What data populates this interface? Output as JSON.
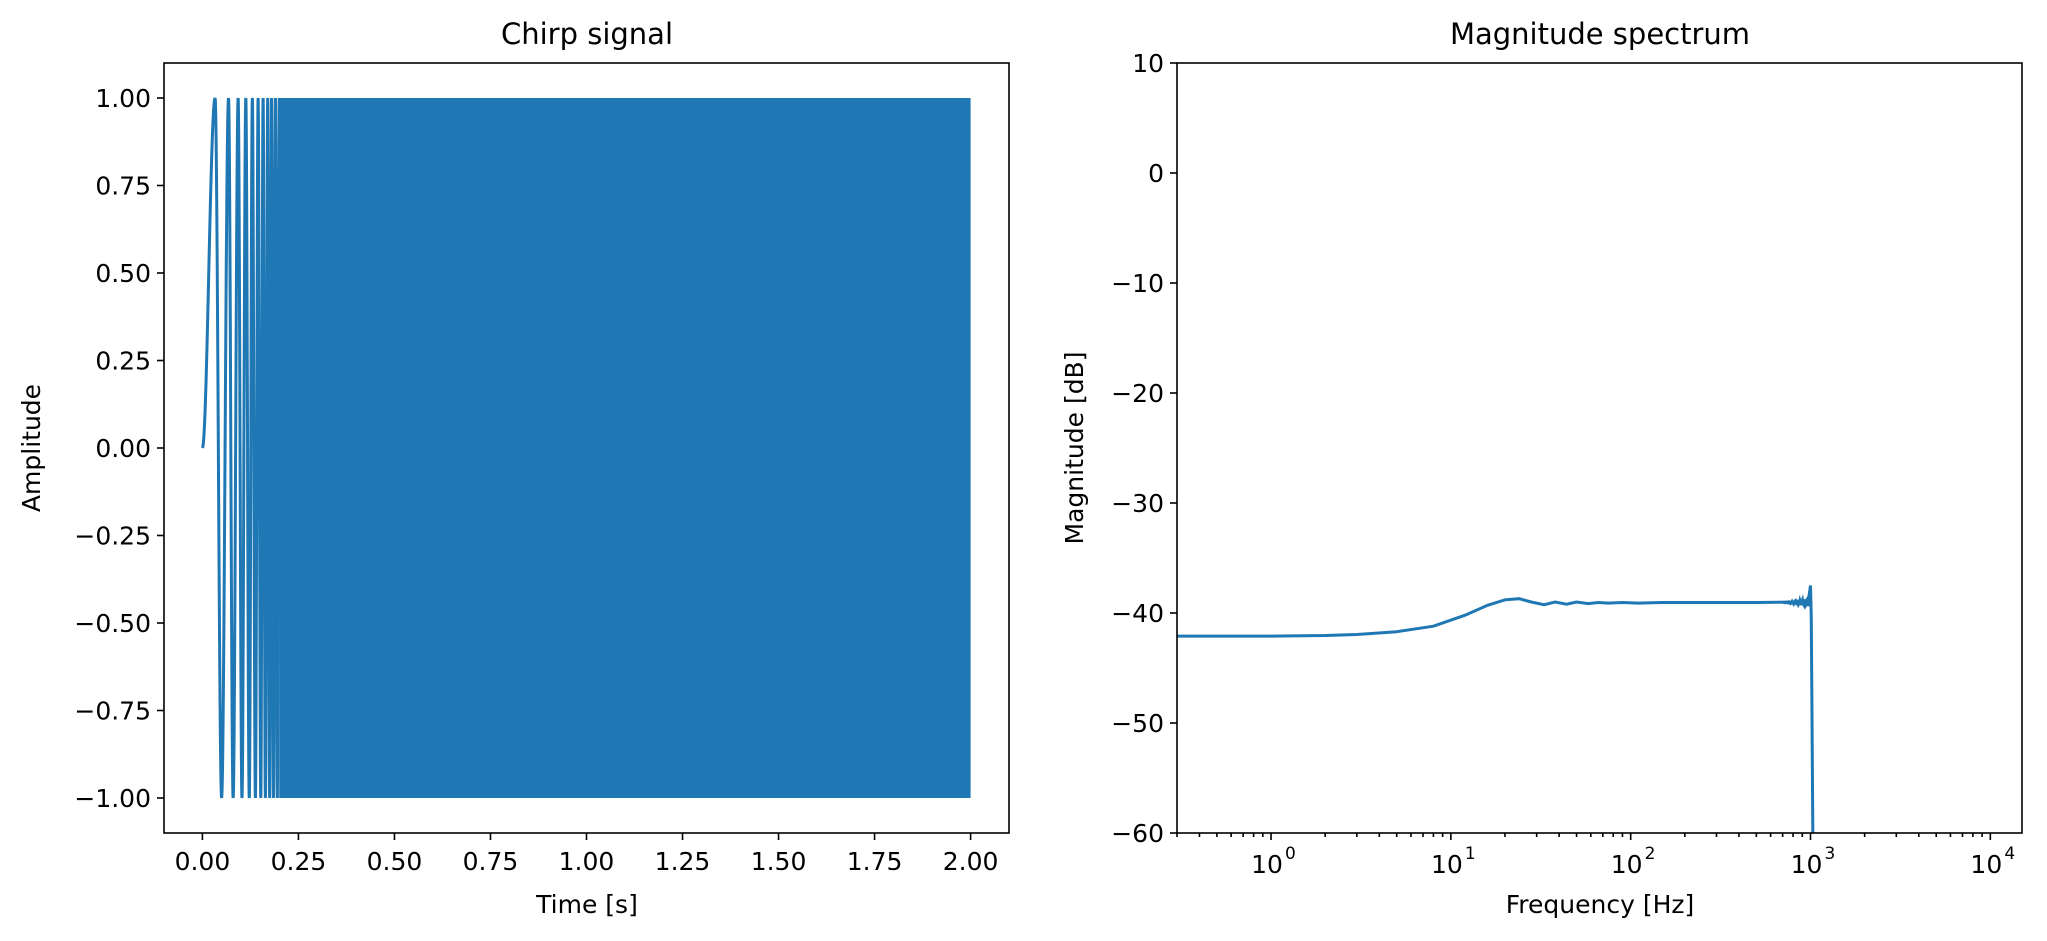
{
  "chart_data": [
    {
      "type": "line",
      "title": "Chirp signal",
      "xlabel": "Time [s]",
      "ylabel": "Amplitude",
      "xlim": [
        -0.1,
        2.1
      ],
      "ylim": [
        -1.1,
        1.1
      ],
      "xticks": [
        0.0,
        0.25,
        0.5,
        0.75,
        1.0,
        1.25,
        1.5,
        1.75,
        2.0
      ],
      "xtick_labels": [
        "0.00",
        "0.25",
        "0.50",
        "0.75",
        "1.00",
        "1.25",
        "1.50",
        "1.75",
        "2.00"
      ],
      "yticks": [
        1.0,
        0.75,
        0.5,
        0.25,
        0.0,
        -0.25,
        -0.5,
        -0.75,
        -1.0
      ],
      "ytick_labels": [
        "1.00",
        "0.75",
        "0.50",
        "0.25",
        "0.00",
        "−0.25",
        "−0.50",
        "−0.75",
        "−1.00"
      ],
      "color": "#1f77b4",
      "series": [
        {
          "description_points": {
            "t": [
              0.0,
              0.033,
              0.05,
              0.068,
              0.08,
              0.093,
              0.103,
              0.113,
              0.122,
              0.13,
              0.138,
              0.145,
              0.152,
              0.158,
              0.164,
              0.17,
              0.175,
              0.18,
              0.185,
              0.19,
              0.195,
              0.2
            ],
            "y": [
              0.0,
              1.0,
              -1.0,
              1.0,
              -1.0,
              1.0,
              -1.0,
              1.0,
              -1.0,
              1.0,
              -1.0,
              1.0,
              -1.0,
              1.0,
              -1.0,
              1.0,
              -1.0,
              1.0,
              -1.0,
              1.0,
              -1.0,
              1.0
            ]
          },
          "dense_region": {
            "t_start": 0.2,
            "t_end": 2.0,
            "y_min": -1.0,
            "y_max": 1.0
          }
        }
      ],
      "grid": false
    },
    {
      "type": "line",
      "title": "Magnitude spectrum",
      "xlabel": "Frequency [Hz]",
      "ylabel": "Magnitude [dB]",
      "xscale": "log",
      "xlim": [
        0.3,
        15000
      ],
      "ylim": [
        -60,
        10
      ],
      "xticks": [
        1,
        10,
        100,
        1000,
        10000
      ],
      "xtick_bases": [
        "10",
        "10",
        "10",
        "10",
        "10"
      ],
      "xtick_exponents": [
        "0",
        "1",
        "2",
        "3",
        "4"
      ],
      "yticks": [
        10,
        0,
        -10,
        -20,
        -30,
        -40,
        -50,
        -60
      ],
      "ytick_labels": [
        "10",
        "0",
        "−10",
        "−20",
        "−30",
        "−40",
        "−50",
        "−60"
      ],
      "color": "#1f77b4",
      "series": [
        {
          "f": [
            0.3,
            1,
            2,
            3,
            5,
            8,
            12,
            16,
            20,
            24,
            28,
            33,
            38,
            44,
            50,
            58,
            66,
            75,
            90,
            110,
            150,
            200,
            300,
            500,
            800,
            900,
            950,
            980,
            1000,
            1010,
            1020,
            1030
          ],
          "db": [
            -42.1,
            -42.1,
            -42.05,
            -41.95,
            -41.7,
            -41.2,
            -40.2,
            -39.3,
            -38.8,
            -38.7,
            -39.0,
            -39.25,
            -39.0,
            -39.2,
            -39.0,
            -39.15,
            -39.05,
            -39.1,
            -39.05,
            -39.1,
            -39.05,
            -39.05,
            -39.05,
            -39.05,
            -39.0,
            -38.95,
            -38.9,
            -38.5,
            -37.5,
            -40.5,
            -50.0,
            -60.0
          ]
        }
      ],
      "grid": false
    }
  ]
}
